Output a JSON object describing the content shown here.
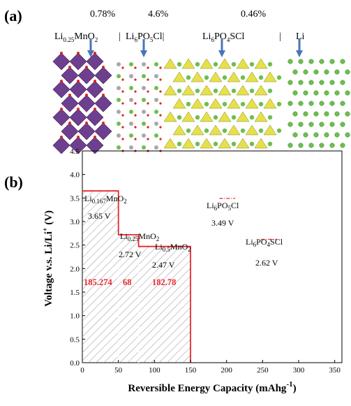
{
  "panel_a": {
    "label": "(a)",
    "percentages": [
      "0.78%",
      "4.6%",
      "0.46%"
    ],
    "interface_labels": {
      "p1": "Li",
      "p1_sub": "0.25",
      "p1_b": "MnO",
      "p1_sub2": "2",
      "sep1": "|",
      "p2": "Li",
      "p2_sub": "6",
      "p2_b": "PO",
      "p2_sub2": "5",
      "p2_c": "Cl|",
      "p3": "Li",
      "p3_sub": "6",
      "p3_b": "PO",
      "p3_sub2": "4",
      "p3_c": "SCl",
      "sep2": "|",
      "p4": "Li"
    },
    "colors": {
      "mno2": "#6f3f8f",
      "oxygen": "#e0241c",
      "lithium": "#6cbf4e",
      "phosphate": "#e6e04a",
      "arrow": "#4a74b8"
    }
  },
  "panel_b": {
    "label": "(b)",
    "ylabel_main": "Voltage v.s. Li/Li",
    "ylabel_sup": "+",
    "ylabel_unit": "(V)",
    "xlabel_main": "Reversible Energy Capacity",
    "xlabel_unit": "(mAhg",
    "xlabel_sup": "-1",
    "xlabel_close": ")"
  },
  "chart_data": {
    "type": "line",
    "xlim": [
      0,
      360
    ],
    "ylim": [
      0,
      4.5
    ],
    "xticks": [
      0,
      50,
      100,
      150,
      200,
      250,
      300,
      350
    ],
    "yticks": [
      0.0,
      0.5,
      1.0,
      1.5,
      2.0,
      2.5,
      3.0,
      3.5,
      4.0,
      4.5
    ],
    "xtick_labels": [
      "0",
      "50",
      "100",
      "150",
      "200",
      "250",
      "300",
      "350"
    ],
    "ytick_labels": [
      "0.0",
      "0.5",
      "1.0",
      "1.5",
      "2.0",
      "2.5",
      "3.0",
      "3.5",
      "4.0",
      "4.5"
    ],
    "voltage_profile": {
      "color": "#e8262f",
      "x": [
        0,
        50,
        50,
        78,
        78,
        150,
        150
      ],
      "y": [
        3.65,
        3.65,
        2.72,
        2.72,
        2.47,
        2.47,
        0
      ]
    },
    "stage_boundaries_x": [
      50,
      78
    ],
    "stages": [
      {
        "name_main": "Li",
        "name_sub": "0.167",
        "name_tail": "MnO",
        "name_sub2": "2",
        "voltage_label": "3.65 V",
        "capacity_label": "185.274"
      },
      {
        "name_main": "Li",
        "name_sub": "0.25",
        "name_tail": "MnO",
        "name_sub2": "2",
        "voltage_label": "2.72 V",
        "capacity_label": "68"
      },
      {
        "name_main": "Li",
        "name_sub": "0.5",
        "name_tail": "MnO",
        "name_sub2": "2",
        "voltage_label": "2.47 V",
        "capacity_label": "182.78"
      }
    ],
    "electrolyte_lines": [
      {
        "name_main": "Li",
        "name_sub": "6",
        "name_b": "PO",
        "name_sub2": "5",
        "name_c": "Cl",
        "voltage": 3.49,
        "voltage_label": "3.49 V",
        "x": [
          190,
          212
        ],
        "color": "#e8262f"
      },
      {
        "name_main": "Li",
        "name_sub": "6",
        "name_b": "PO",
        "name_sub2": "4",
        "name_c": "SCl",
        "voltage": 2.62,
        "voltage_label": "2.62 V",
        "x": [
          248,
          270
        ],
        "color": "#e8262f"
      }
    ],
    "grid": false
  }
}
